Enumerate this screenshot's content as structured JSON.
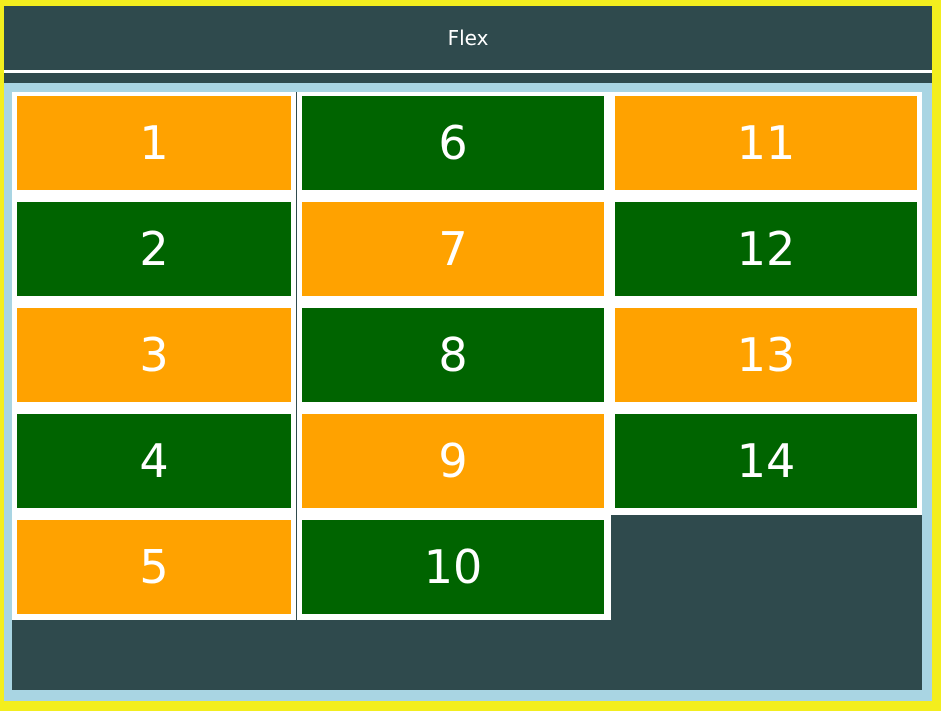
{
  "header": {
    "title": "Flex"
  },
  "colors": {
    "frame": "#f3ee1e",
    "header": "#2f4a4d",
    "stage": "#a9d5e3",
    "container": "#2f4a4d",
    "orange": "#ffa200",
    "green": "#006400"
  },
  "items": [
    {
      "label": "1",
      "color": "orange"
    },
    {
      "label": "2",
      "color": "green"
    },
    {
      "label": "3",
      "color": "orange"
    },
    {
      "label": "4",
      "color": "green"
    },
    {
      "label": "5",
      "color": "orange"
    },
    {
      "label": "6",
      "color": "green"
    },
    {
      "label": "7",
      "color": "orange"
    },
    {
      "label": "8",
      "color": "green"
    },
    {
      "label": "9",
      "color": "orange"
    },
    {
      "label": "10",
      "color": "green"
    },
    {
      "label": "11",
      "color": "orange"
    },
    {
      "label": "12",
      "color": "green"
    },
    {
      "label": "13",
      "color": "orange"
    },
    {
      "label": "14",
      "color": "green"
    }
  ]
}
